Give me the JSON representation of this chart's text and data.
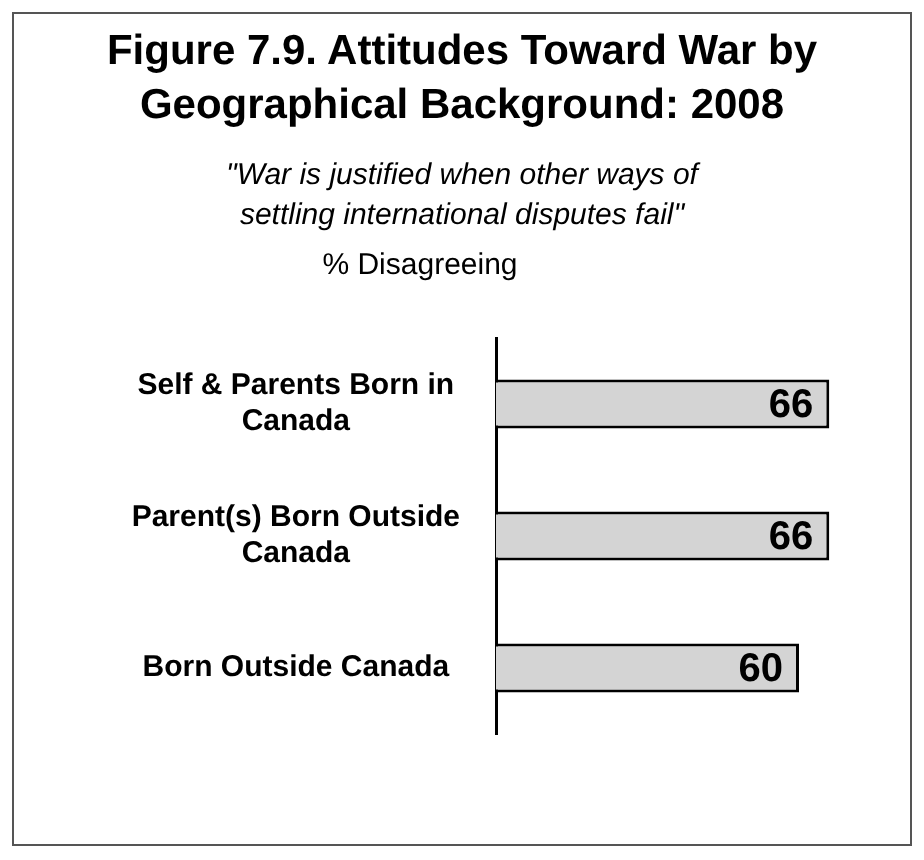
{
  "chart_data": {
    "type": "bar",
    "orientation": "horizontal",
    "title": "Figure 7.9. Attitudes Toward War by Geographical Background: 2008",
    "subtitle": "\"War is justified when other ways of settling international disputes fail\"",
    "xlabel": "% Disagreeing",
    "categories": [
      "Self & Parents Born in Canada",
      "Parent(s) Born Outside Canada",
      "Born Outside Canada"
    ],
    "values": [
      66,
      66,
      60
    ],
    "color": "#d4d4d4",
    "data_labels": true
  }
}
